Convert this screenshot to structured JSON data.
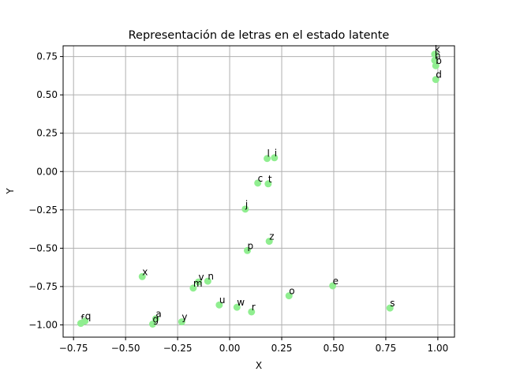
{
  "chart_data": {
    "type": "scatter",
    "title": "Representación de letras en el estado latente",
    "xlabel": "X",
    "ylabel": "Y",
    "xlim": [
      -0.8,
      1.08
    ],
    "ylim": [
      -1.08,
      0.82
    ],
    "xticks": [
      -0.75,
      -0.5,
      -0.25,
      0.0,
      0.25,
      0.5,
      0.75,
      1.0
    ],
    "xtick_labels": [
      "−0.75",
      "−0.50",
      "−0.25",
      "0.00",
      "0.25",
      "0.50",
      "0.75",
      "1.00"
    ],
    "yticks": [
      -1.0,
      -0.75,
      -0.5,
      -0.25,
      0.0,
      0.25,
      0.5,
      0.75
    ],
    "ytick_labels": [
      "−1.00",
      "−0.75",
      "−0.50",
      "−0.25",
      "0.00",
      "0.25",
      "0.50",
      "0.75"
    ],
    "grid": true,
    "marker_color": "#90ee90",
    "points": [
      {
        "label": "k",
        "x": 0.985,
        "y": 0.765
      },
      {
        "label": "h",
        "x": 0.985,
        "y": 0.725
      },
      {
        "label": "b",
        "x": 0.99,
        "y": 0.69
      },
      {
        "label": "d",
        "x": 0.99,
        "y": 0.6
      },
      {
        "label": "l",
        "x": 0.18,
        "y": 0.085
      },
      {
        "label": "i",
        "x": 0.215,
        "y": 0.09
      },
      {
        "label": "c",
        "x": 0.135,
        "y": -0.075
      },
      {
        "label": "t",
        "x": 0.185,
        "y": -0.08
      },
      {
        "label": "j",
        "x": 0.075,
        "y": -0.245
      },
      {
        "label": "z",
        "x": 0.19,
        "y": -0.455
      },
      {
        "label": "p",
        "x": 0.085,
        "y": -0.515
      },
      {
        "label": "x",
        "x": -0.42,
        "y": -0.685
      },
      {
        "label": "v",
        "x": -0.15,
        "y": -0.72
      },
      {
        "label": "n",
        "x": -0.105,
        "y": -0.715
      },
      {
        "label": "m",
        "x": -0.175,
        "y": -0.76
      },
      {
        "label": "e",
        "x": 0.495,
        "y": -0.745
      },
      {
        "label": "o",
        "x": 0.285,
        "y": -0.81
      },
      {
        "label": "u",
        "x": -0.05,
        "y": -0.87
      },
      {
        "label": "w",
        "x": 0.035,
        "y": -0.885
      },
      {
        "label": "r",
        "x": 0.105,
        "y": -0.915
      },
      {
        "label": "s",
        "x": 0.77,
        "y": -0.89
      },
      {
        "label": "a",
        "x": -0.355,
        "y": -0.96
      },
      {
        "label": "g",
        "x": -0.37,
        "y": -0.995
      },
      {
        "label": "y",
        "x": -0.23,
        "y": -0.98
      },
      {
        "label": "f",
        "x": -0.715,
        "y": -0.99
      },
      {
        "label": "q",
        "x": -0.695,
        "y": -0.975
      }
    ]
  }
}
